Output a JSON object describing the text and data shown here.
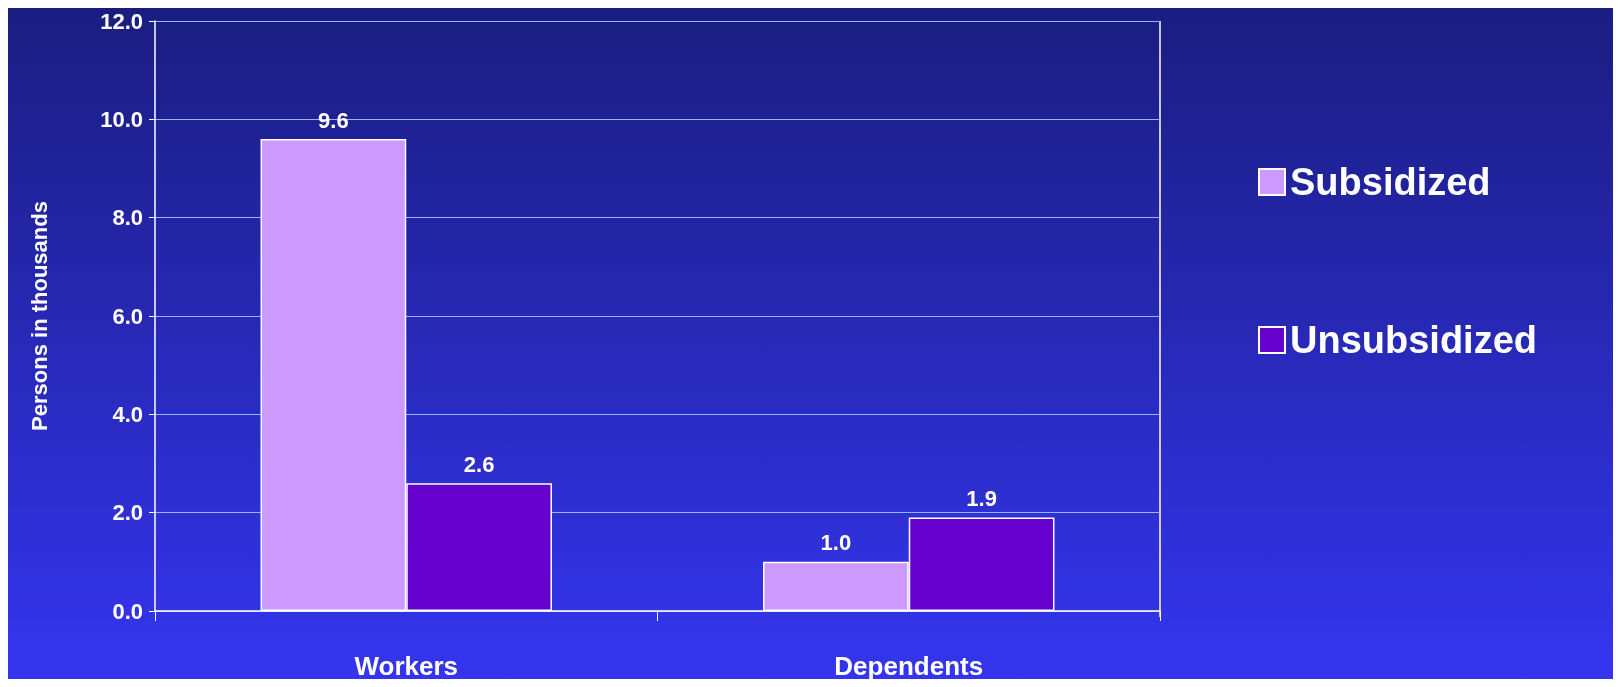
{
  "chart_data": {
    "type": "bar",
    "ylabel": "Persons in thousands",
    "categories": [
      "Workers",
      "Dependents"
    ],
    "series": [
      {
        "name": "Subsidized",
        "color": "#cc99ff",
        "values": [
          9.6,
          1.0
        ],
        "value_labels": [
          "9.6",
          "1.0"
        ]
      },
      {
        "name": "Unsubsidized",
        "color": "#6600cc",
        "values": [
          2.6,
          1.9
        ],
        "value_labels": [
          "2.6",
          "1.9"
        ]
      }
    ],
    "ylim": [
      0,
      12
    ],
    "yticks": [
      {
        "value": 0,
        "label": "0.0"
      },
      {
        "value": 2,
        "label": "2.0"
      },
      {
        "value": 4,
        "label": "4.0"
      },
      {
        "value": 6,
        "label": "6.0"
      },
      {
        "value": 8,
        "label": "8.0"
      },
      {
        "value": 10,
        "label": "10.0"
      },
      {
        "value": 12,
        "label": "12.0"
      }
    ],
    "grid": "y",
    "legend": "right"
  }
}
